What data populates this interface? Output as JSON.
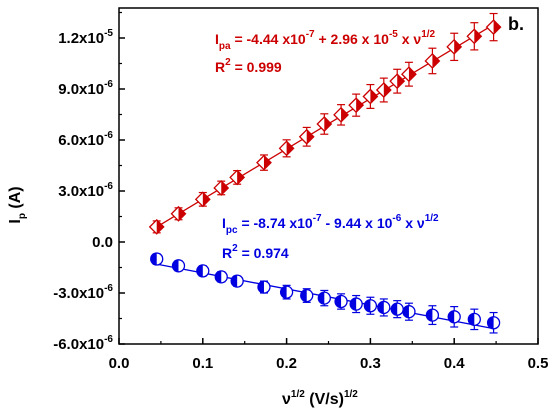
{
  "chart_data": {
    "type": "scatter",
    "panel_label": "b.",
    "xlabel": {
      "base": "ν",
      "sup1": "1/2",
      "mid": " (V/s)",
      "sup2": "1/2"
    },
    "ylabel": {
      "base": "I",
      "sub": "p",
      "unit": " (A)"
    },
    "xlim": [
      0.0,
      0.5
    ],
    "ylim": [
      -6e-06,
      1.35e-05
    ],
    "x_ticks": [
      0.0,
      0.1,
      0.2,
      0.3,
      0.4,
      0.5
    ],
    "x_tick_labels": [
      "0.0",
      "0.1",
      "0.2",
      "0.3",
      "0.4",
      "0.5"
    ],
    "y_ticks": [
      -6e-06,
      -3e-06,
      0.0,
      3e-06,
      6e-06,
      9e-06,
      1.2e-05
    ],
    "y_tick_labels": [
      {
        "base": "-6.0x10",
        "exp": "-6"
      },
      {
        "base": "-3.0x10",
        "exp": "-6"
      },
      {
        "base": "0.0",
        "exp": ""
      },
      {
        "base": "3.0x10",
        "exp": "-6"
      },
      {
        "base": "6.0x10",
        "exp": "-6"
      },
      {
        "base": "9.0x10",
        "exp": "-6"
      },
      {
        "base": "1.2x10",
        "exp": "-5"
      }
    ],
    "grid": false,
    "legend": false,
    "series": [
      {
        "marker": "diamond-half",
        "color": "#cc0000",
        "x": [
          0.045,
          0.071,
          0.1,
          0.122,
          0.141,
          0.173,
          0.2,
          0.224,
          0.245,
          0.265,
          0.283,
          0.3,
          0.316,
          0.332,
          0.346,
          0.374,
          0.4,
          0.424,
          0.447
        ],
        "y": [
          8.9e-07,
          1.66e-06,
          2.51e-06,
          3.18e-06,
          3.8e-06,
          4.67e-06,
          5.51e-06,
          6.19e-06,
          6.94e-06,
          7.48e-06,
          8.05e-06,
          8.56e-06,
          8.94e-06,
          9.46e-06,
          9.87e-06,
          1.065e-05,
          1.148e-05,
          1.21e-05,
          1.264e-05
        ],
        "err": [
          3.5e-07,
          3.5e-07,
          4e-07,
          4e-07,
          4e-07,
          4.5e-07,
          5e-07,
          5.5e-07,
          6e-07,
          6e-07,
          6.5e-07,
          7e-07,
          7e-07,
          7e-07,
          7e-07,
          7.5e-07,
          8e-07,
          8e-07,
          8e-07
        ],
        "fit": {
          "intercept": -4.44e-07,
          "slope": 2.96e-05,
          "x_range": [
            0.045,
            0.447
          ]
        }
      },
      {
        "marker": "circle-half",
        "color": "#0000e0",
        "x": [
          0.045,
          0.071,
          0.1,
          0.122,
          0.141,
          0.173,
          0.2,
          0.224,
          0.245,
          0.265,
          0.283,
          0.3,
          0.316,
          0.332,
          0.346,
          0.374,
          0.4,
          0.424,
          0.447
        ],
        "y": [
          -1e-06,
          -1.4e-06,
          -1.7e-06,
          -2.05e-06,
          -2.3e-06,
          -2.65e-06,
          -2.95e-06,
          -3.15e-06,
          -3.3e-06,
          -3.5e-06,
          -3.65e-06,
          -3.75e-06,
          -3.85e-06,
          -3.95e-06,
          -4.1e-06,
          -4.3e-06,
          -4.4e-06,
          -4.55e-06,
          -4.75e-06
        ],
        "err": [
          3e-07,
          3e-07,
          3e-07,
          3e-07,
          3e-07,
          3.5e-07,
          4e-07,
          4e-07,
          4.5e-07,
          4.5e-07,
          5e-07,
          5e-07,
          5e-07,
          5e-07,
          5e-07,
          5.5e-07,
          6e-07,
          6e-07,
          6e-07
        ],
        "fit": {
          "intercept": -8.74e-07,
          "slope": -9.44e-06,
          "x_range": [
            0.045,
            0.447
          ]
        }
      }
    ],
    "annotations": [
      {
        "color": "#cc0000",
        "line1": {
          "I": "I",
          "sub": "pa",
          "a": " = -4.44 x10",
          "e1": "-7",
          "b": " + 2.96 x 10",
          "e2": "-5",
          "c": " x ν",
          "e3": "1/2"
        },
        "line2": {
          "R": "R",
          "sup": "2",
          "val": " = 0.999"
        }
      },
      {
        "color": "#0000e0",
        "line1": {
          "I": "I",
          "sub": "pc",
          "a": " = -8.74 x10",
          "e1": "-7",
          "b": " - 9.44 x 10",
          "e2": "-6",
          "c": " x ν",
          "e3": "1/2"
        },
        "line2": {
          "R": "R",
          "sup": "2",
          "val": " = 0.974"
        }
      }
    ]
  }
}
